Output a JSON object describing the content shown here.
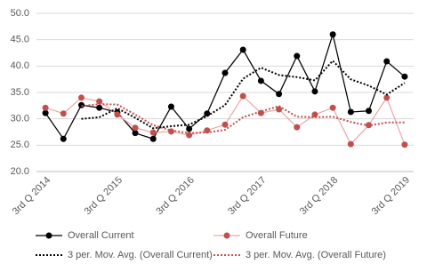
{
  "chart_data": {
    "type": "line",
    "categories": [
      "3rd Q 2014",
      null,
      null,
      null,
      "3rd Q 2015",
      null,
      null,
      null,
      "3rd Q 2016",
      null,
      null,
      null,
      "3rd Q 2017",
      null,
      null,
      null,
      "3rd Q 2018",
      null,
      null,
      null,
      "3rd Q 2019"
    ],
    "series": [
      {
        "name": "Overall Current",
        "color": "#000000",
        "line_color": "#000000",
        "line_style": "solid",
        "marker": true,
        "values": [
          31.1,
          26.2,
          32.6,
          32.1,
          31.2,
          27.3,
          26.2,
          32.3,
          28.1,
          31.0,
          38.7,
          43.1,
          37.2,
          34.7,
          41.9,
          35.2,
          46.0,
          31.3,
          31.5,
          40.9,
          38.0
        ]
      },
      {
        "name": "Overall Future",
        "color": "#c0504d",
        "line_color": "#eba9a8",
        "line_style": "solid",
        "marker": true,
        "values": [
          32.1,
          31.0,
          34.0,
          33.3,
          30.8,
          28.3,
          27.4,
          27.6,
          26.9,
          27.8,
          28.9,
          34.3,
          31.1,
          31.8,
          28.4,
          30.8,
          32.1,
          25.2,
          28.8,
          34.0,
          25.1
        ]
      },
      {
        "name": "3 per. Mov. Avg. (Overall Current)",
        "color": "#000000",
        "line_color": "#000000",
        "line_style": "dotted",
        "marker": false,
        "values": [
          null,
          null,
          30.0,
          30.3,
          32.0,
          30.2,
          28.2,
          28.6,
          28.9,
          30.5,
          32.6,
          37.6,
          39.7,
          38.3,
          37.9,
          37.3,
          41.0,
          37.5,
          36.3,
          34.6,
          36.8
        ]
      },
      {
        "name": "3 per. Mov. Avg. (Overall Future)",
        "color": "#c0504d",
        "line_color": "#c0504d",
        "line_style": "dotted",
        "marker": false,
        "values": [
          null,
          null,
          32.4,
          32.8,
          32.7,
          30.8,
          28.8,
          27.8,
          27.3,
          27.4,
          27.9,
          30.3,
          31.4,
          32.4,
          30.4,
          30.3,
          30.4,
          29.4,
          28.7,
          29.3,
          29.3
        ]
      }
    ],
    "ylim": [
      20,
      50
    ],
    "yticks": [
      {
        "value": 20,
        "label": "20.0"
      },
      {
        "value": 25,
        "label": "25.0"
      },
      {
        "value": 30,
        "label": "30.0"
      },
      {
        "value": 35,
        "label": "35.0"
      },
      {
        "value": 40,
        "label": "40.0"
      },
      {
        "value": 45,
        "label": "45.0"
      },
      {
        "value": 50,
        "label": "50.0"
      }
    ],
    "grid": true,
    "legend": "bottom"
  }
}
